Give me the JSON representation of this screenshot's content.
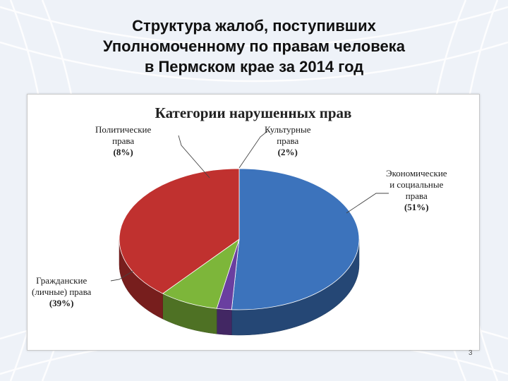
{
  "slide": {
    "title_lines": [
      "Структура жалоб, поступивших",
      "Уполномоченному по правам человека",
      "в Пермском крае за 2014 год"
    ],
    "slide_number": "3"
  },
  "colors": {
    "economic": "#3c73bc",
    "civil": "#c0312f",
    "political": "#7db63a",
    "cultural": "#6a3fa0"
  },
  "chart_data": {
    "type": "pie",
    "title": "Категории нарушенных прав",
    "slices": [
      {
        "key": "economic",
        "label_lines": [
          "Экономические",
          "и социальные",
          "права"
        ],
        "percent_label": "(51%)",
        "value": 51
      },
      {
        "key": "civil",
        "label_lines": [
          "Гражданские",
          "(личные) права"
        ],
        "percent_label": "(39%)",
        "value": 39
      },
      {
        "key": "political",
        "label_lines": [
          "Политические",
          "права"
        ],
        "percent_label": "(8%)",
        "value": 8
      },
      {
        "key": "cultural",
        "label_lines": [
          "Культурные",
          "права"
        ],
        "percent_label": "(2%)",
        "value": 2
      }
    ]
  }
}
